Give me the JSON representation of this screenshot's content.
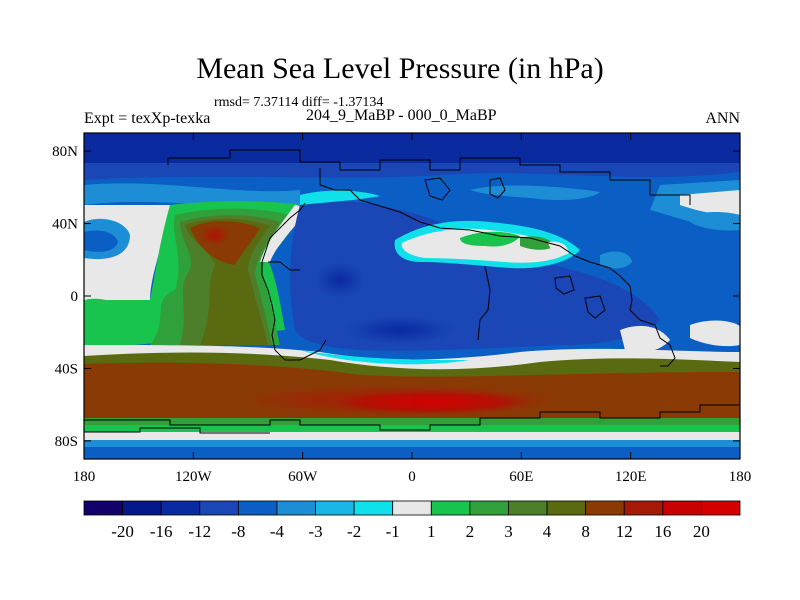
{
  "chart_data": {
    "type": "heatmap",
    "title": "Mean Sea Level Pressure (in hPa)",
    "stats_label": "rmsd= 7.37114 diff= -1.37134",
    "subtitle": "204_9_MaBP - 000_0_MaBP",
    "left_label": "Expt = texXp-texka",
    "right_label": "ANN",
    "x_ticks": [
      "180",
      "120W",
      "60W",
      "0",
      "60E",
      "120E",
      "180"
    ],
    "x_tick_values": [
      -180,
      -120,
      -60,
      0,
      60,
      120,
      180
    ],
    "y_ticks": [
      "80N",
      "40N",
      "0",
      "40S",
      "80S"
    ],
    "y_tick_values": [
      80,
      40,
      0,
      -40,
      -80
    ],
    "xlim": [
      -180,
      180
    ],
    "ylim": [
      -90,
      90
    ],
    "colorbar_labels": [
      "-20",
      "-16",
      "-12",
      "-8",
      "-4",
      "-3",
      "-2",
      "-1",
      "1",
      "2",
      "3",
      "4",
      "8",
      "12",
      "16",
      "20"
    ],
    "colorbar_colors": [
      "#13006b",
      "#05188a",
      "#0a2aa0",
      "#1a47b5",
      "#0b5fc4",
      "#1d8ed6",
      "#18b7e6",
      "#10e0ea",
      "#e8e8e8",
      "#18c44e",
      "#2fa03a",
      "#4d7f2a",
      "#5a6a10",
      "#8a3a05",
      "#a51a06",
      "#c80000",
      "#d40000"
    ]
  }
}
